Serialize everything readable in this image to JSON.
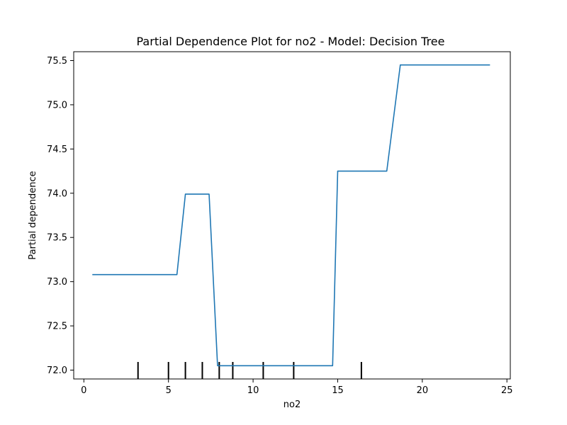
{
  "chart_data": {
    "type": "line",
    "title": "Partial Dependence Plot for no2 - Model: Decision Tree",
    "xlabel": "no2",
    "ylabel": "Partial dependence",
    "xlim": [
      -0.6,
      25.2
    ],
    "ylim": [
      71.9,
      75.6
    ],
    "xticks": [
      0,
      5,
      10,
      15,
      20,
      25
    ],
    "yticks": [
      72.0,
      72.5,
      73.0,
      73.5,
      74.0,
      74.5,
      75.0,
      75.5
    ],
    "xtick_labels": [
      "0",
      "5",
      "10",
      "15",
      "20",
      "25"
    ],
    "ytick_labels": [
      "72.0",
      "72.5",
      "73.0",
      "73.5",
      "74.0",
      "74.5",
      "75.0",
      "75.5"
    ],
    "grid": false,
    "series": [
      {
        "color": "#1f77b4",
        "x": [
          0.5,
          5.5,
          6.0,
          7.4,
          7.9,
          14.7,
          15.0,
          17.9,
          18.7,
          24.0
        ],
        "y": [
          73.08,
          73.08,
          73.99,
          73.99,
          72.05,
          72.05,
          74.25,
          74.25,
          75.45,
          75.45
        ]
      }
    ],
    "rug": {
      "color": "#000000",
      "x": [
        3.2,
        5.0,
        6.0,
        7.0,
        8.0,
        8.8,
        10.6,
        12.4,
        16.4
      ]
    }
  }
}
